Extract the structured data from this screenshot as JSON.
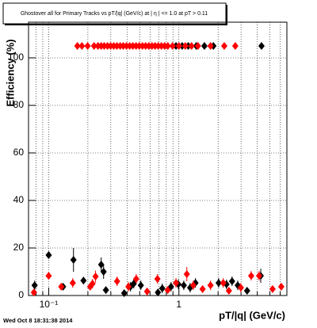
{
  "chart_data": {
    "type": "scatter",
    "title": "Ghostover all for Primary Tracks vs pT/|q| (GeV/c) at |  η | <= 1.0 at pT > 0.11",
    "x_label": "pT/|q| (GeV/c)",
    "y_label": "Efficiency (%)",
    "timestamp": "Wed Oct  8 18:31:38 2014",
    "xlim": [
      0.07,
      6.75
    ],
    "ylim": [
      0,
      115
    ],
    "log_x": true,
    "grid": true,
    "xticks": [
      {
        "value": 0.1,
        "label": "10⁻¹"
      },
      1
    ],
    "x_minor_ticks": [
      0.08,
      0.09,
      0.2,
      0.3,
      0.4,
      0.5,
      0.6,
      0.7,
      0.8,
      0.9,
      2,
      3,
      4,
      5,
      6
    ],
    "yticks": [
      0,
      20,
      40,
      60,
      80,
      100
    ],
    "series": [
      {
        "color": "#000000",
        "x": [
          0.078,
          0.1,
          0.129,
          0.155,
          0.185,
          0.253,
          0.264,
          0.275,
          0.38,
          0.425,
          0.45,
          0.51,
          0.69,
          0.745,
          0.87,
          0.99,
          1.09,
          1.22,
          1.34,
          2.02,
          2.32,
          2.56,
          2.83,
          3.34,
          4.25,
          0.95,
          1.06,
          1.18,
          1.36,
          1.57,
          1.84,
          4.31
        ],
        "values": [
          4.3,
          17,
          3.7,
          15,
          6.3,
          13,
          10,
          2.3,
          1,
          3.7,
          5,
          4.3,
          1.3,
          3,
          3.7,
          4.7,
          4.3,
          3.3,
          5.3,
          5.3,
          4.7,
          6,
          4.3,
          2,
          8.3,
          105,
          105,
          105,
          105,
          105,
          105,
          105
        ],
        "errors": [
          2,
          1.5,
          1,
          5,
          1.5,
          3,
          3,
          1.5,
          1,
          2,
          2,
          2,
          1,
          2,
          2,
          2,
          2,
          2,
          2,
          2,
          2,
          2,
          2,
          1.5,
          3,
          0,
          0,
          0,
          0,
          0,
          0,
          0
        ]
      },
      {
        "color": "#ff0000",
        "x": [
          0.077,
          0.1,
          0.125,
          0.153,
          0.208,
          0.217,
          0.229,
          0.335,
          0.41,
          0.47,
          0.57,
          0.684,
          0.82,
          0.95,
          1.15,
          1.29,
          1.52,
          1.75,
          2.19,
          2.42,
          2.99,
          3.59,
          4.13,
          5.24,
          6.11,
          0.166,
          0.18,
          0.199,
          0.223,
          0.239,
          0.253,
          0.267,
          0.283,
          0.299,
          0.316,
          0.334,
          0.354,
          0.374,
          0.396,
          0.419,
          0.443,
          0.469,
          0.496,
          0.525,
          0.555,
          0.587,
          0.621,
          0.656,
          0.694,
          0.734,
          0.777,
          0.822,
          0.894,
          1.0,
          1.12,
          1.25,
          1.4,
          1.75,
          2.23,
          2.71
        ],
        "values": [
          1.3,
          8.3,
          3.7,
          5.3,
          3.7,
          5,
          8,
          6,
          3.7,
          7,
          1.7,
          7,
          2.3,
          5.3,
          9,
          4.3,
          2.7,
          4.3,
          5.3,
          2,
          3.3,
          8.3,
          8.3,
          2.7,
          3.7,
          105,
          105,
          105,
          105,
          105,
          105,
          105,
          105,
          105,
          105,
          105,
          105,
          105,
          105,
          105,
          105,
          105,
          105,
          105,
          105,
          105,
          105,
          105,
          105,
          105,
          105,
          105,
          105,
          105,
          105,
          105,
          105,
          105,
          105,
          105
        ],
        "errors": [
          1,
          1.5,
          1,
          2,
          1.5,
          2,
          2.5,
          2,
          2,
          2,
          1.5,
          2,
          1.5,
          2,
          3,
          2,
          1.5,
          2,
          2,
          1.5,
          2,
          2,
          2,
          1.5,
          1.5,
          0,
          0,
          0,
          0,
          0,
          0,
          0,
          0,
          0,
          0,
          0,
          0,
          0,
          0,
          0,
          0,
          0,
          0,
          0,
          0,
          0,
          0,
          0,
          0,
          0,
          0,
          0,
          0,
          0,
          0,
          0,
          0,
          0,
          0,
          0
        ]
      }
    ]
  }
}
